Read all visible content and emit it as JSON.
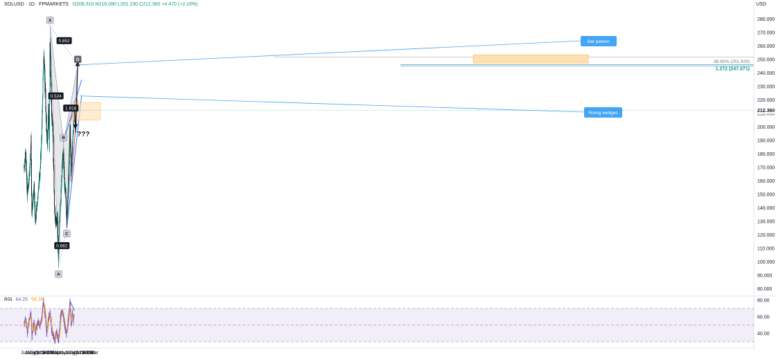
{
  "header": {
    "symbol": "SOLUSD · 1D · FPMARKETS",
    "ohlc": "O206.510 H216.080 L201.230 C212.360 +4.470 (+2.15%)",
    "currency": "USD"
  },
  "colors": {
    "up": "#089981",
    "down": "#131722",
    "pattern_fill": "#e0e0e3",
    "wedge_blue": "#2962ff",
    "wedge_red": "#f23645",
    "prz_fill": "#ffe0b2",
    "rsi_line": "#7e57c2",
    "rsi_ma": "#f7a600",
    "callout": "#42a5f5",
    "price_tag": "#131722"
  },
  "chart_data": [
    {
      "type": "candlestick",
      "ylim": [
        80,
        290
      ],
      "y_ticks": [
        280,
        270,
        260,
        250,
        240,
        230,
        220,
        210,
        200,
        190,
        180,
        170,
        160,
        150,
        140,
        130,
        120,
        110,
        100,
        90,
        80
      ],
      "y_tick_labels": [
        "280.000",
        "270.000",
        "260.000",
        "250.000",
        "240.000",
        "230.000",
        "220.000",
        "210.000",
        "200.000",
        "190.000",
        "180.000",
        "170.000",
        "160.000",
        "150.000",
        "140.000",
        "130.000",
        "120.000",
        "110.000",
        "100.000",
        "90.000",
        "80.000"
      ],
      "x_ticks": [
        "Jun",
        "Jul",
        "Aug",
        "Sep",
        "Oct",
        "Nov",
        "Dec",
        "2025",
        "Feb",
        "Mar",
        "Apr",
        "May",
        "Jun",
        "Jul",
        "Aug",
        "Sep",
        "Oct",
        "Nov",
        "Dec",
        "2026",
        "Feb",
        "Mar"
      ],
      "price_anchors": [
        {
          "date": "2024-05-25",
          "price": 170
        },
        {
          "date": "2024-06-10",
          "price": 180
        },
        {
          "date": "2024-06-24",
          "price": 150
        },
        {
          "date": "2024-07-20",
          "price": 170
        },
        {
          "date": "2024-07-29",
          "price": 190
        },
        {
          "date": "2024-08-05",
          "price": 135
        },
        {
          "date": "2024-08-25",
          "price": 155
        },
        {
          "date": "2024-09-07",
          "price": 130
        },
        {
          "date": "2024-10-01",
          "price": 150
        },
        {
          "date": "2024-10-20",
          "price": 168
        },
        {
          "date": "2024-10-28",
          "price": 180
        },
        {
          "date": "2024-11-08",
          "price": 205
        },
        {
          "date": "2024-11-22",
          "price": 255
        },
        {
          "date": "2024-12-01",
          "price": 238
        },
        {
          "date": "2024-12-10",
          "price": 220
        },
        {
          "date": "2024-12-18",
          "price": 200
        },
        {
          "date": "2024-12-28",
          "price": 185
        },
        {
          "date": "2025-01-05",
          "price": 215
        },
        {
          "date": "2025-01-14",
          "price": 185
        },
        {
          "date": "2025-01-19",
          "price": 260
        },
        {
          "date": "2025-01-25",
          "price": 240
        },
        {
          "date": "2025-02-04",
          "price": 210
        },
        {
          "date": "2025-02-15",
          "price": 195
        },
        {
          "date": "2025-02-22",
          "price": 170
        },
        {
          "date": "2025-03-02",
          "price": 140
        },
        {
          "date": "2025-03-14",
          "price": 128
        },
        {
          "date": "2025-03-28",
          "price": 135
        },
        {
          "date": "2025-04-07",
          "price": 100
        },
        {
          "date": "2025-04-15",
          "price": 130
        },
        {
          "date": "2025-04-30",
          "price": 150
        },
        {
          "date": "2025-05-12",
          "price": 172
        },
        {
          "date": "2025-05-23",
          "price": 180
        },
        {
          "date": "2025-05-30",
          "price": 160
        },
        {
          "date": "2025-06-12",
          "price": 150
        },
        {
          "date": "2025-06-22",
          "price": 130
        },
        {
          "date": "2025-07-05",
          "price": 150
        },
        {
          "date": "2025-07-14",
          "price": 165
        },
        {
          "date": "2025-07-22",
          "price": 200
        },
        {
          "date": "2025-08-02",
          "price": 165
        },
        {
          "date": "2025-08-10",
          "price": 180
        },
        {
          "date": "2025-08-18",
          "price": 190
        },
        {
          "date": "2025-08-24",
          "price": 200
        },
        {
          "date": "2025-08-29",
          "price": 212.36
        }
      ],
      "harmonic_points": [
        {
          "label": "X",
          "date": "2025-01-19",
          "price": 275
        },
        {
          "label": "A",
          "date": "2025-04-07",
          "price": 95
        },
        {
          "label": "B",
          "date": "2025-05-23",
          "price": 188
        },
        {
          "label": "C",
          "date": "2025-06-22",
          "price": 125
        },
        {
          "label": "D",
          "date": "2025-10-01",
          "price": 246
        }
      ],
      "ratios": [
        "0.852",
        "0.524",
        "0.682",
        "1.916"
      ],
      "levels": [
        {
          "label": "88.60% (251.929)",
          "price": 251.929
        },
        {
          "label": "1.272 (247.071)",
          "price": 247.071
        }
      ],
      "last_price": "212.360",
      "annotations": [
        "Bat pattern",
        "Rising wedges",
        "???"
      ]
    },
    {
      "type": "line",
      "name": "RSI",
      "ylim": [
        25,
        85
      ],
      "y_ticks": [
        80,
        60,
        40
      ],
      "y_tick_labels": [
        "80.00",
        "60.00",
        "40.00"
      ],
      "band": [
        30,
        70
      ],
      "last": "64.25",
      "ma_last": "58.38",
      "rsi_anchors": [
        {
          "date": "2024-05-25",
          "v": 50
        },
        {
          "date": "2024-06-10",
          "v": 58
        },
        {
          "date": "2024-06-25",
          "v": 40
        },
        {
          "date": "2024-07-10",
          "v": 55
        },
        {
          "date": "2024-07-29",
          "v": 65
        },
        {
          "date": "2024-08-05",
          "v": 35
        },
        {
          "date": "2024-08-25",
          "v": 55
        },
        {
          "date": "2024-09-07",
          "v": 40
        },
        {
          "date": "2024-10-01",
          "v": 55
        },
        {
          "date": "2024-10-20",
          "v": 48
        },
        {
          "date": "2024-11-05",
          "v": 60
        },
        {
          "date": "2024-11-20",
          "v": 80
        },
        {
          "date": "2024-12-05",
          "v": 62
        },
        {
          "date": "2024-12-20",
          "v": 40
        },
        {
          "date": "2025-01-05",
          "v": 58
        },
        {
          "date": "2025-01-19",
          "v": 66
        },
        {
          "date": "2025-02-04",
          "v": 42
        },
        {
          "date": "2025-02-20",
          "v": 38
        },
        {
          "date": "2025-03-05",
          "v": 32
        },
        {
          "date": "2025-03-20",
          "v": 44
        },
        {
          "date": "2025-04-07",
          "v": 30
        },
        {
          "date": "2025-04-25",
          "v": 60
        },
        {
          "date": "2025-05-12",
          "v": 68
        },
        {
          "date": "2025-05-25",
          "v": 58
        },
        {
          "date": "2025-06-10",
          "v": 44
        },
        {
          "date": "2025-06-22",
          "v": 38
        },
        {
          "date": "2025-07-10",
          "v": 62
        },
        {
          "date": "2025-07-22",
          "v": 79
        },
        {
          "date": "2025-08-02",
          "v": 48
        },
        {
          "date": "2025-08-14",
          "v": 66
        },
        {
          "date": "2025-08-22",
          "v": 55
        },
        {
          "date": "2025-08-29",
          "v": 64.25
        }
      ]
    }
  ]
}
